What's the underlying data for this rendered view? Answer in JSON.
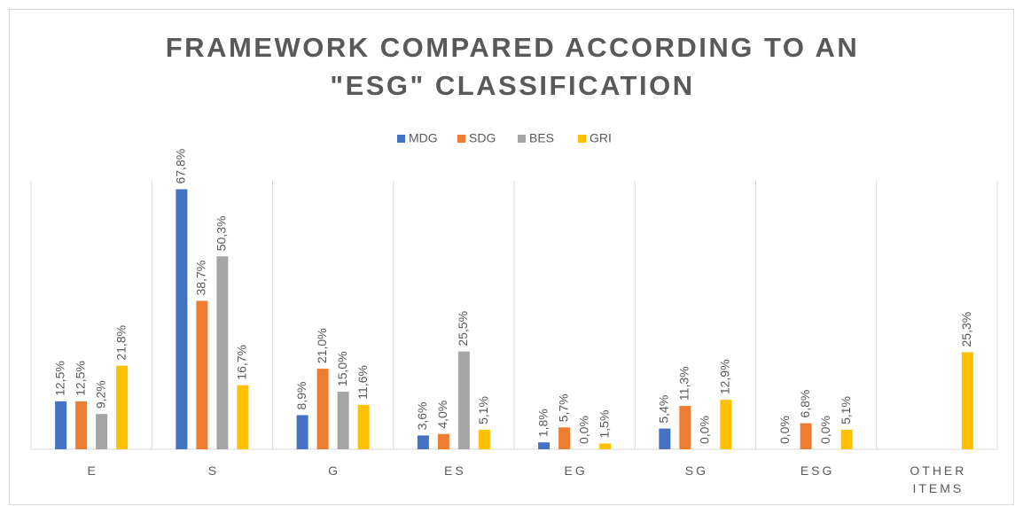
{
  "chart_data": {
    "type": "bar",
    "title": [
      "FRAMEWORK COMPARED ACCORDING TO AN",
      "\"ESG\" CLASSIFICATION"
    ],
    "categories": [
      "E",
      "S",
      "G",
      "ES",
      "EG",
      "SG",
      "ESG",
      "OTHER ITEMS"
    ],
    "series": [
      {
        "name": "MDG",
        "color": "#4472c4",
        "values": [
          12.5,
          67.8,
          8.9,
          3.6,
          1.8,
          5.4,
          0.0,
          null
        ],
        "value_labels": [
          "12,5%",
          "67,8%",
          "8,9%",
          "3,6%",
          "1,8%",
          "5,4%",
          "0,0%",
          null
        ]
      },
      {
        "name": "SDG",
        "color": "#ed7d31",
        "values": [
          12.5,
          38.7,
          21.0,
          4.0,
          5.7,
          11.3,
          6.8,
          null
        ],
        "value_labels": [
          "12,5%",
          "38,7%",
          "21,0%",
          "4,0%",
          "5,7%",
          "11,3%",
          "6,8%",
          null
        ]
      },
      {
        "name": "BES",
        "color": "#a5a5a5",
        "values": [
          9.2,
          50.3,
          15.0,
          25.5,
          0.0,
          0.0,
          0.0,
          null
        ],
        "value_labels": [
          "9,2%",
          "50,3%",
          "15,0%",
          "25,5%",
          "0,0%",
          "0,0%",
          "0,0%",
          null
        ]
      },
      {
        "name": "GRI",
        "color": "#ffc000",
        "values": [
          21.8,
          16.7,
          11.6,
          5.1,
          1.5,
          12.9,
          5.1,
          25.3
        ],
        "value_labels": [
          "21,8%",
          "16,7%",
          "11,6%",
          "5,1%",
          "1,5%",
          "12,9%",
          "5,1%",
          "25,3%"
        ]
      }
    ],
    "ylim": [
      0,
      70
    ],
    "legend": "top"
  }
}
